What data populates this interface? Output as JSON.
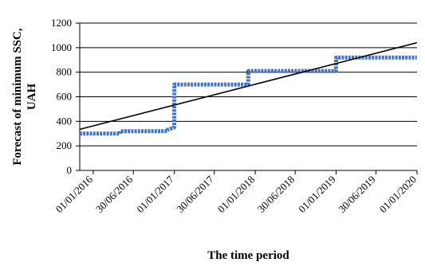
{
  "chart_data": {
    "type": "line",
    "title": "",
    "xlabel": "The time period",
    "ylabel": "Forecast of minimum SSC, UAH",
    "ylim": [
      0,
      1200
    ],
    "yticks": [
      0,
      200,
      400,
      600,
      800,
      1000,
      1200
    ],
    "xlim": [
      "2015-11-01",
      "2020-01-01"
    ],
    "xticks": [
      "01/01/2016",
      "30/06/2016",
      "01/01/2017",
      "30/06/2017",
      "01/01/2018",
      "30/06/2018",
      "01/01/2019",
      "30/06/2019",
      "01/01/2020"
    ],
    "grid": "horizontal",
    "legend": "none",
    "series": [
      {
        "color": "#4472C4",
        "x": [
          "2015-11-01",
          "2016-04-30",
          "2016-05-01",
          "2016-11-30",
          "2016-12-01",
          "2016-12-31",
          "2017-01-01",
          "2017-11-30",
          "2017-12-01",
          "2018-12-31",
          "2019-01-01",
          "2019-12-31"
        ],
        "values": [
          300,
          300,
          320,
          320,
          330,
          350,
          700,
          700,
          810,
          810,
          920,
          920
        ]
      },
      {
        "color": "#000000",
        "x": [
          "2015-11-01",
          "2019-12-31"
        ],
        "values": [
          335,
          1040
        ]
      }
    ]
  }
}
